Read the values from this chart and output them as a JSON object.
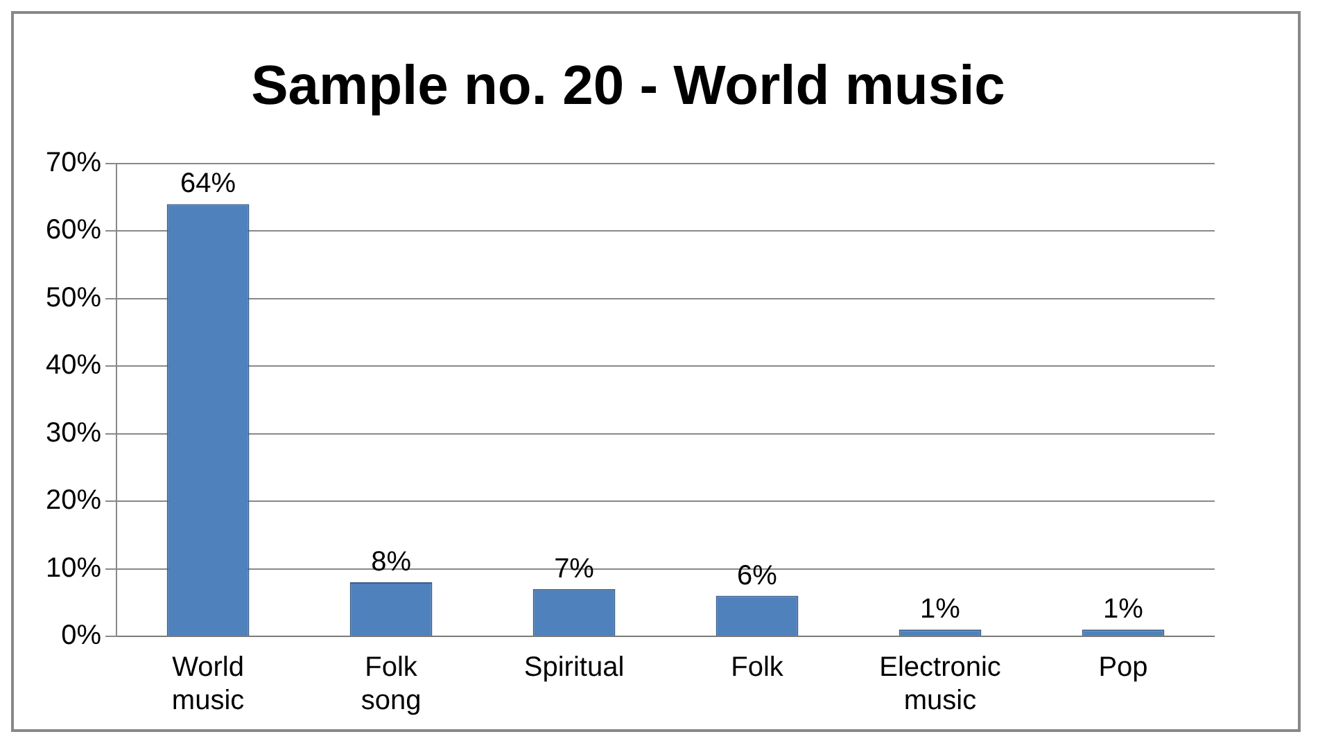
{
  "chart_data": {
    "type": "bar",
    "title": "Sample no. 20 - World music",
    "categories": [
      "World music",
      "Folk song",
      "Spiritual",
      "Folk",
      "Electronic music",
      "Pop"
    ],
    "values": [
      64,
      8,
      7,
      6,
      1,
      1
    ],
    "color": "#4f81bd",
    "value_labels": [
      "64%",
      "8%",
      "7%",
      "6%",
      "1%",
      "1%"
    ],
    "ylim": [
      0,
      70
    ],
    "yticks": [
      {
        "value": 0,
        "label": "0%"
      },
      {
        "value": 10,
        "label": "10%"
      },
      {
        "value": 20,
        "label": "20%"
      },
      {
        "value": 30,
        "label": "30%"
      },
      {
        "value": 40,
        "label": "40%"
      },
      {
        "value": 50,
        "label": "50%"
      },
      {
        "value": 60,
        "label": "60%"
      },
      {
        "value": 70,
        "label": "70%"
      }
    ],
    "grid": "y",
    "legend": false
  }
}
